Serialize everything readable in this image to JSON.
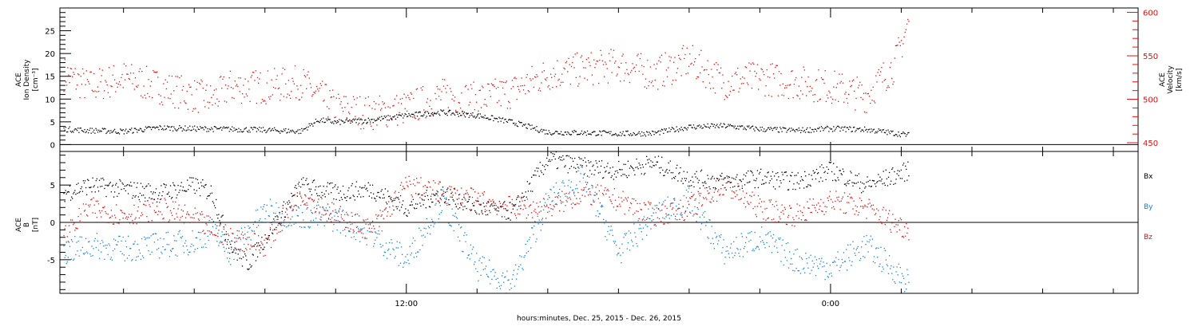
{
  "xlabel": "hours:minutes, Dec. 25, 2015 - Dec. 26, 2015",
  "chart_data": [
    {
      "type": "scatter",
      "panel": "top",
      "ylabel_left": [
        "ACE",
        "Ion Density",
        "[cm⁻³]"
      ],
      "ylabel_right": [
        "ACE",
        "Velocity",
        "[km/s]"
      ],
      "ylim": [
        -1.5,
        30
      ],
      "yticks": [
        0,
        5,
        10,
        15,
        20,
        25
      ],
      "y2lim": [
        440,
        605
      ],
      "y2ticks": [
        450,
        500,
        550,
        600
      ],
      "x_unit": "hours since 00:00 Dec. 25, 2015",
      "xlim": [
        2.2,
        32.7
      ],
      "xticks": [
        {
          "x": 12,
          "label": "12:00"
        },
        {
          "x": 24,
          "label": "0:00"
        }
      ],
      "series": [
        {
          "axis": "left",
          "color": "#000000",
          "x": [
            2.3,
            3,
            4,
            5,
            6,
            7,
            8,
            9,
            9.5,
            10,
            11,
            12,
            13,
            14,
            15,
            16,
            17,
            18,
            19,
            20,
            21,
            22,
            23,
            24,
            25,
            26.2
          ],
          "y": [
            3.5,
            3.2,
            3.0,
            3.8,
            3.6,
            3.5,
            3.3,
            3.0,
            5.5,
            5.0,
            5.5,
            6.5,
            7.2,
            6.5,
            5.0,
            2.8,
            2.7,
            2.5,
            2.6,
            4.0,
            4.2,
            3.5,
            3.2,
            3.6,
            3.4,
            2.2
          ]
        },
        {
          "axis": "right",
          "color": "#e01010",
          "x": [
            2.3,
            3,
            4,
            5,
            6,
            6.5,
            7,
            8,
            9,
            10,
            11,
            12,
            13,
            14,
            15,
            16,
            17,
            18,
            19,
            20,
            21,
            22,
            23,
            24,
            25,
            25.8,
            26.2
          ],
          "y": [
            530,
            515,
            525,
            515,
            505,
            500,
            515,
            515,
            520,
            490,
            485,
            490,
            505,
            500,
            510,
            530,
            535,
            540,
            530,
            545,
            520,
            525,
            520,
            515,
            505,
            540,
            590
          ]
        }
      ]
    },
    {
      "type": "scatter",
      "panel": "bottom",
      "ylabel_left": [
        "ACE",
        "B",
        "[nT]"
      ],
      "ylim": [
        -9.5,
        9.5
      ],
      "yticks": [
        -5,
        0,
        5
      ],
      "xlim": [
        2.2,
        32.7
      ],
      "xticks": [
        {
          "x": 12,
          "label": "12:00"
        },
        {
          "x": 24,
          "label": "0:00"
        }
      ],
      "legend": "right",
      "series": [
        {
          "name": "Bx",
          "color": "#000000",
          "x": [
            2.3,
            3,
            4,
            5,
            6,
            6.5,
            7,
            7.5,
            8,
            9,
            10,
            11,
            12,
            13,
            14,
            15,
            16,
            17,
            18,
            19,
            20,
            21,
            22,
            23,
            24,
            25,
            26.2
          ],
          "y": [
            4.0,
            5.0,
            4.5,
            4.0,
            5.0,
            4.0,
            -3.0,
            -5.5,
            -2.0,
            5.0,
            4.0,
            4.5,
            2.0,
            4.0,
            2.0,
            1.5,
            8.5,
            7.5,
            7.0,
            8.0,
            6.0,
            5.5,
            6.0,
            5.5,
            7.0,
            5.0,
            7.0
          ]
        },
        {
          "name": "By",
          "color": "#1080e0",
          "x": [
            2.3,
            3,
            4,
            5,
            6,
            6.5,
            7,
            8,
            9,
            10,
            11,
            12,
            13,
            14,
            15,
            16,
            17,
            18,
            19,
            20,
            21,
            22,
            23,
            24,
            25,
            26.2
          ],
          "y": [
            -4.0,
            -3.0,
            -3.5,
            -3.0,
            -2.5,
            -1.0,
            -4.0,
            1.5,
            1.0,
            0.5,
            -1.5,
            -5.0,
            3.0,
            -6.0,
            -8.0,
            3.0,
            6.0,
            -4.0,
            1.0,
            3.0,
            -4.0,
            -2.0,
            -5.0,
            -6.0,
            -3.0,
            -8.0
          ]
        },
        {
          "name": "Bz",
          "color": "#e01010",
          "x": [
            2.3,
            3,
            4,
            5,
            6,
            7,
            8,
            9,
            10,
            11,
            12,
            13,
            14,
            15,
            16,
            17,
            18,
            19,
            20,
            21,
            22,
            23,
            24,
            25,
            26.2
          ],
          "y": [
            -2.0,
            2.0,
            1.0,
            2.0,
            0.5,
            -2.0,
            -3.0,
            4.0,
            1.0,
            -1.0,
            5.0,
            4.0,
            3.0,
            2.0,
            2.0,
            4.0,
            3.0,
            1.0,
            2.0,
            5.0,
            2.0,
            1.0,
            3.0,
            2.0,
            -1.0
          ]
        }
      ]
    }
  ]
}
